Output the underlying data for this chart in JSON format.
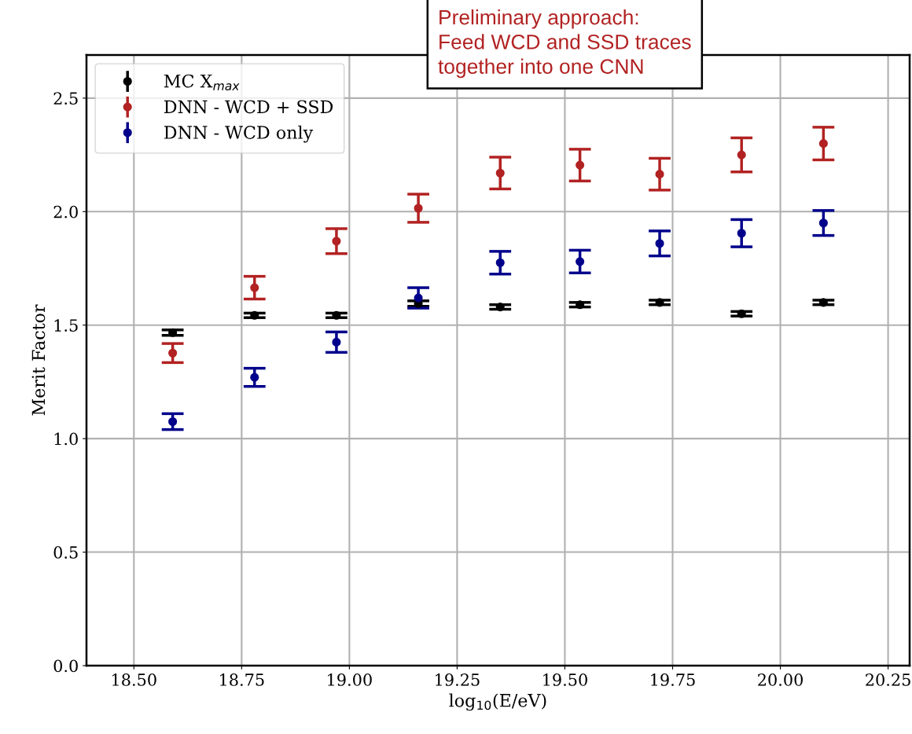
{
  "chart_data": {
    "type": "scatter",
    "xlabel": "log$_{10}$(E/eV)",
    "ylabel": "Merit Factor",
    "x": [
      18.59,
      18.78,
      18.97,
      19.16,
      19.35,
      19.535,
      19.72,
      19.91,
      20.1
    ],
    "series": [
      {
        "name": "MC X$_{max}$",
        "color": "#000000",
        "values": [
          1.467,
          1.543,
          1.543,
          1.595,
          1.58,
          1.59,
          1.6,
          1.55,
          1.6
        ],
        "errors": [
          0.012,
          0.01,
          0.01,
          0.012,
          0.01,
          0.01,
          0.01,
          0.01,
          0.01
        ]
      },
      {
        "name": "DNN - WCD + SSD",
        "color": "#b22222",
        "values": [
          1.377,
          1.665,
          1.87,
          2.015,
          2.17,
          2.205,
          2.165,
          2.25,
          2.3
        ],
        "errors": [
          0.042,
          0.05,
          0.055,
          0.062,
          0.07,
          0.07,
          0.07,
          0.075,
          0.072
        ]
      },
      {
        "name": "DNN - WCD only",
        "color": "#00008b",
        "values": [
          1.075,
          1.27,
          1.425,
          1.62,
          1.775,
          1.78,
          1.86,
          1.905,
          1.95
        ],
        "errors": [
          0.035,
          0.04,
          0.045,
          0.045,
          0.05,
          0.05,
          0.055,
          0.06,
          0.055
        ]
      }
    ],
    "xlim": [
      18.39,
      20.3
    ],
    "xticks": [
      {
        "value": 18.5,
        "label": "18.50"
      },
      {
        "value": 18.75,
        "label": "18.75"
      },
      {
        "value": 19.0,
        "label": "19.00"
      },
      {
        "value": 19.25,
        "label": "19.25"
      },
      {
        "value": 19.5,
        "label": "19.50"
      },
      {
        "value": 19.75,
        "label": "19.75"
      },
      {
        "value": 20.0,
        "label": "20.00"
      },
      {
        "value": 20.25,
        "label": "20.25"
      }
    ],
    "ylim": [
      0,
      2.69
    ],
    "yticks": [
      {
        "value": 0,
        "label": "0.0"
      },
      {
        "value": 0.5,
        "label": "0.5"
      },
      {
        "value": 1.0,
        "label": "1.0"
      },
      {
        "value": 1.5,
        "label": "1.5"
      },
      {
        "value": 2.0,
        "label": "2.0"
      },
      {
        "value": 2.5,
        "label": "2.5"
      }
    ],
    "grid": true,
    "legend": "top left",
    "marker": "circle",
    "annotations": [
      "Preliminary approach:\nFeed WCD and SSD traces\ntogether into one CNN"
    ]
  }
}
